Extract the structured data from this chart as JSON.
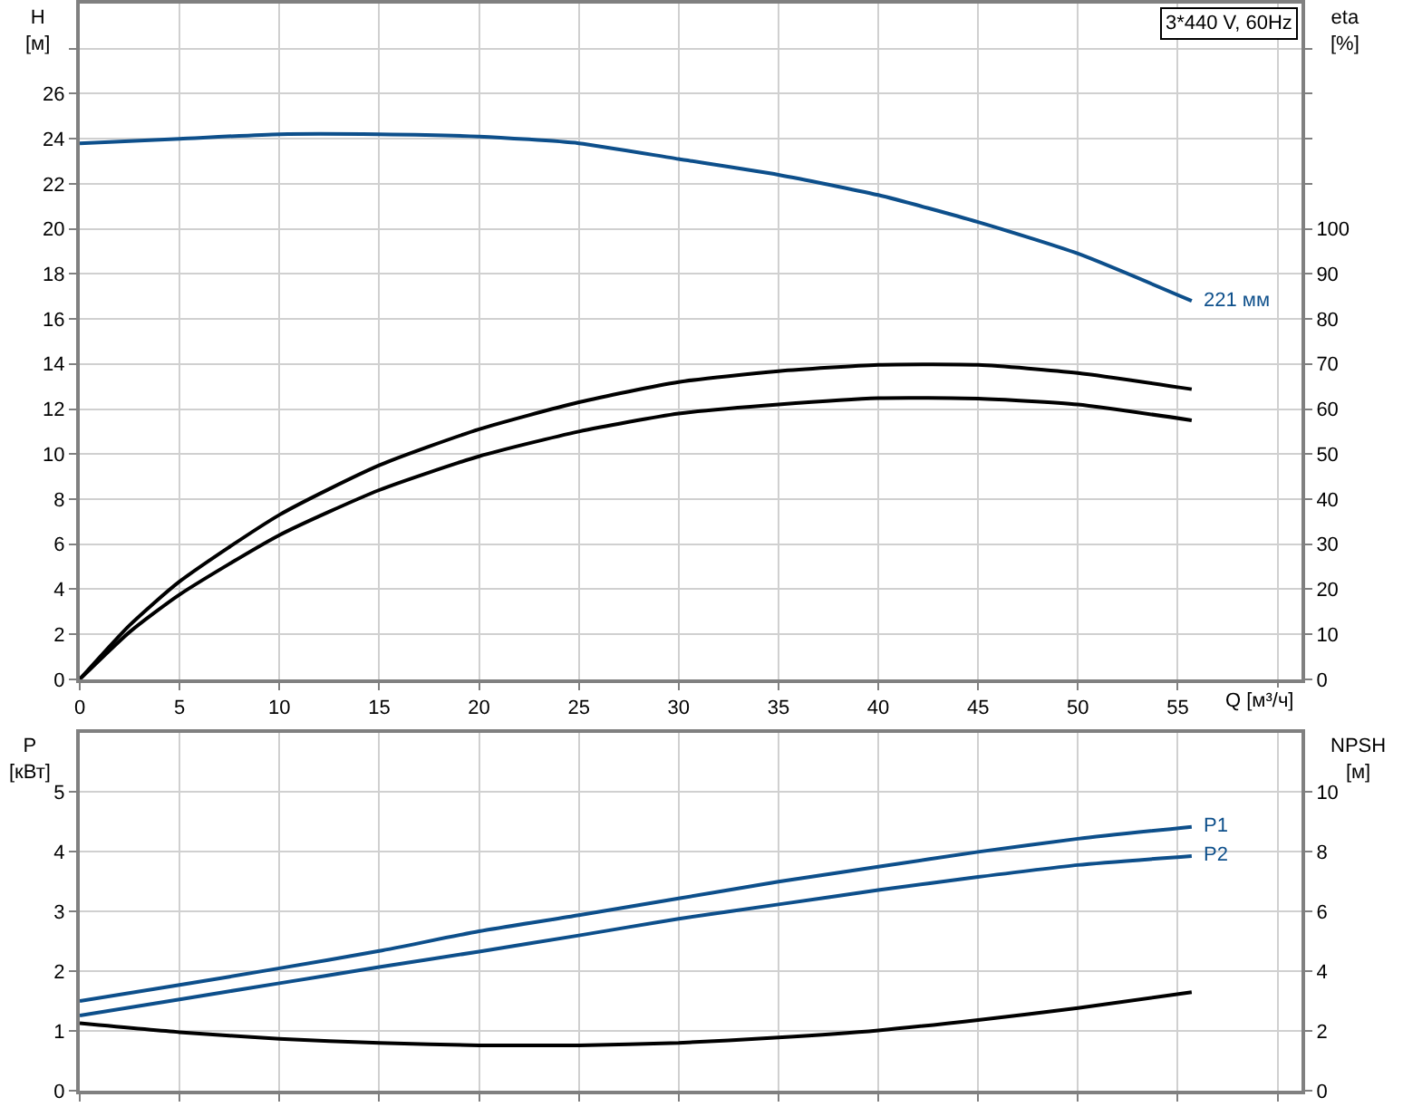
{
  "chart_data": [
    {
      "type": "line",
      "title": "3*440 V, 60Hz",
      "xlabel": "Q [м³/ч]",
      "ylabel": "H\n[м]",
      "y2label": "eta\n[%]",
      "xlim": [
        0,
        61.2
      ],
      "xticks": [
        0,
        5,
        10,
        15,
        20,
        25,
        30,
        35,
        40,
        45,
        50,
        55,
        {
          "value": 60,
          "label": null
        }
      ],
      "ylim": [
        0,
        30
      ],
      "yticks": [
        0,
        2,
        4,
        6,
        8,
        10,
        12,
        14,
        16,
        18,
        20,
        22,
        24,
        26,
        {
          "value": 28,
          "label": null
        }
      ],
      "y2lim": [
        0,
        150
      ],
      "y2ticks": [
        0,
        10,
        20,
        30,
        40,
        50,
        60,
        70,
        80,
        90,
        100,
        {
          "value": 110,
          "label": null
        },
        {
          "value": 120,
          "label": null
        },
        {
          "value": 130,
          "label": null
        },
        {
          "value": 140,
          "label": null
        }
      ],
      "grid": true,
      "marker": "none",
      "line_style": "solid",
      "series": [
        {
          "name": "221 мм",
          "color": "#0d4f8b",
          "x": [
            0,
            5,
            10,
            15,
            20,
            25,
            30,
            35,
            40,
            45,
            50,
            55.7
          ],
          "values": [
            23.8,
            24.0,
            24.2,
            24.2,
            24.1,
            23.8,
            23.1,
            22.4,
            21.5,
            20.3,
            18.9,
            16.8
          ]
        },
        {
          "color": "#000000",
          "axis": "y2",
          "x": [
            0,
            2.5,
            5,
            10,
            15,
            20,
            25,
            30,
            35,
            40,
            45,
            50,
            55.7
          ],
          "values": [
            0,
            12,
            21.7,
            36.5,
            47.5,
            55.5,
            61.5,
            66,
            68.4,
            69.8,
            69.8,
            68,
            64.4
          ]
        },
        {
          "color": "#000000",
          "axis": "y2",
          "x": [
            0,
            2.5,
            5,
            10,
            15,
            20,
            25,
            30,
            35,
            40,
            45,
            50,
            55.7
          ],
          "values": [
            0,
            10.5,
            18.8,
            32,
            42,
            49.5,
            55,
            59,
            61,
            62.4,
            62.3,
            61,
            57.5
          ]
        }
      ]
    },
    {
      "type": "line",
      "ylabel": "P\n[кВт]",
      "y2label": "NPSH\n[м]",
      "tick_labels": "y",
      "xlim": [
        0,
        61.2
      ],
      "xticks": [
        0,
        5,
        10,
        15,
        20,
        25,
        30,
        35,
        40,
        45,
        50,
        55,
        60
      ],
      "ylim": [
        0,
        6
      ],
      "yticks": [
        0,
        1,
        2,
        3,
        4,
        5
      ],
      "y2lim": [
        0,
        12
      ],
      "y2ticks": [
        0,
        2,
        4,
        6,
        8,
        10
      ],
      "grid": true,
      "marker": "none",
      "line_style": "solid",
      "series": [
        {
          "name": "P1",
          "color": "#0d4f8b",
          "x": [
            0,
            5,
            10,
            15,
            20,
            25,
            30,
            35,
            40,
            45,
            50,
            55.7
          ],
          "values": [
            1.5,
            1.77,
            2.05,
            2.34,
            2.67,
            2.94,
            3.22,
            3.5,
            3.75,
            4.0,
            4.22,
            4.42
          ]
        },
        {
          "name": "P2",
          "color": "#0d4f8b",
          "x": [
            0,
            5,
            10,
            15,
            20,
            25,
            30,
            35,
            40,
            45,
            50,
            55.7
          ],
          "values": [
            1.26,
            1.53,
            1.8,
            2.07,
            2.33,
            2.6,
            2.88,
            3.12,
            3.36,
            3.58,
            3.78,
            3.93
          ]
        },
        {
          "color": "#000000",
          "axis": "y2",
          "x": [
            0,
            5,
            10,
            15,
            20,
            25,
            30,
            35,
            40,
            45,
            50,
            55.7
          ],
          "values": [
            2.26,
            1.96,
            1.74,
            1.6,
            1.52,
            1.52,
            1.6,
            1.78,
            2.02,
            2.37,
            2.77,
            3.3
          ]
        }
      ]
    }
  ]
}
